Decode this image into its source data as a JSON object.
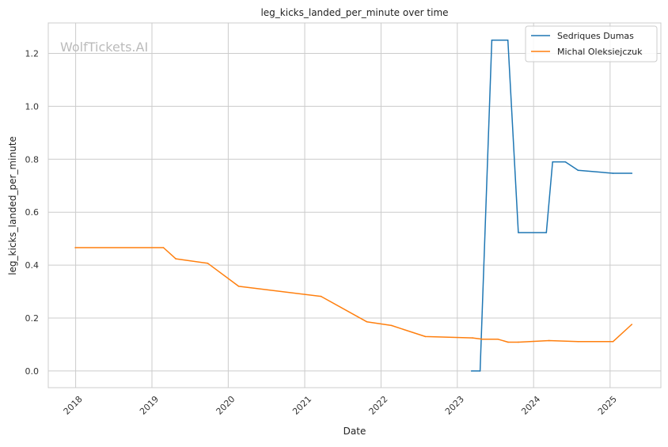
{
  "chart_data": {
    "type": "line",
    "title": "leg_kicks_landed_per_minute over time",
    "xlabel": "Date",
    "ylabel": "leg_kicks_landed_per_minute",
    "watermark": "WolfTickets.AI",
    "x_ticks": [
      "2018",
      "2019",
      "2020",
      "2021",
      "2022",
      "2023",
      "2024",
      "2025"
    ],
    "y_ticks": [
      "0.0",
      "0.2",
      "0.4",
      "0.6",
      "0.8",
      "1.0",
      "1.2"
    ],
    "xlim": [
      "2017-08-23",
      "2025-09-01"
    ],
    "ylim": [
      -0.063,
      1.315
    ],
    "grid": true,
    "legend_position": "top-right",
    "series": [
      {
        "name": "Sedriques Dumas",
        "color": "#1f77b4",
        "x": [
          "2023-03-10",
          "2023-04-20",
          "2023-06-15",
          "2023-08-31",
          "2023-10-20",
          "2024-03-02",
          "2024-04-01",
          "2024-06-01",
          "2024-08-01",
          "2025-01-15",
          "2025-04-15"
        ],
        "y": [
          0.0,
          0.0,
          1.25,
          1.25,
          0.523,
          0.523,
          0.79,
          0.79,
          0.758,
          0.747,
          0.747
        ]
      },
      {
        "name": "Michal Oleksiejczuk",
        "color": "#ff7f0e",
        "x": [
          "2017-12-30",
          "2019-02-25",
          "2019-04-25",
          "2019-09-25",
          "2020-02-20",
          "2021-03-20",
          "2021-10-25",
          "2022-02-20",
          "2022-08-01",
          "2023-03-15",
          "2023-05-01",
          "2023-07-15",
          "2023-09-01",
          "2023-10-20",
          "2024-03-15",
          "2024-08-01",
          "2025-01-15",
          "2025-04-15"
        ],
        "y": [
          0.466,
          0.466,
          0.424,
          0.407,
          0.32,
          0.282,
          0.186,
          0.172,
          0.13,
          0.125,
          0.12,
          0.12,
          0.109,
          0.109,
          0.115,
          0.111,
          0.111,
          0.176
        ]
      }
    ]
  }
}
